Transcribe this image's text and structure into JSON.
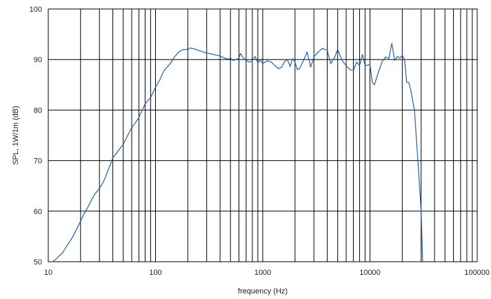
{
  "chart_data": {
    "type": "line",
    "title": "",
    "xlabel": "frequency (Hz)",
    "ylabel": "SPL, 1W/1m (dB)",
    "x_scale": "log",
    "xlim": [
      10,
      100000
    ],
    "ylim": [
      50,
      100
    ],
    "grid": true,
    "legend": "none",
    "x_ticks": [
      "10",
      "100",
      "1000",
      "10000",
      "100000"
    ],
    "y_ticks": [
      "50",
      "60",
      "70",
      "80",
      "90",
      "100"
    ],
    "series": [
      {
        "color": "#1f5fa8",
        "points": [
          [
            11,
            50
          ],
          [
            12,
            50.7
          ],
          [
            13.5,
            51.7
          ],
          [
            15,
            53.2
          ],
          [
            17,
            55
          ],
          [
            19,
            57
          ],
          [
            21,
            59
          ],
          [
            23,
            60.5
          ],
          [
            25,
            62
          ],
          [
            27,
            63.3
          ],
          [
            30,
            64.5
          ],
          [
            33,
            66
          ],
          [
            36,
            68
          ],
          [
            40,
            70.5
          ],
          [
            45,
            72
          ],
          [
            50,
            73.2
          ],
          [
            55,
            75
          ],
          [
            60,
            76.5
          ],
          [
            65,
            77.5
          ],
          [
            70,
            78.5
          ],
          [
            75,
            80
          ],
          [
            80,
            81.2
          ],
          [
            90,
            82.5
          ],
          [
            100,
            84.5
          ],
          [
            110,
            86
          ],
          [
            120,
            87.8
          ],
          [
            135,
            89
          ],
          [
            150,
            90.5
          ],
          [
            165,
            91.5
          ],
          [
            180,
            92
          ],
          [
            200,
            92
          ],
          [
            210,
            92.3
          ],
          [
            230,
            92.1
          ],
          [
            260,
            91.7
          ],
          [
            300,
            91.3
          ],
          [
            350,
            91
          ],
          [
            400,
            90.7
          ],
          [
            450,
            90.2
          ],
          [
            480,
            90.1
          ],
          [
            500,
            90.3
          ],
          [
            530,
            89.8
          ],
          [
            560,
            90
          ],
          [
            600,
            90.3
          ],
          [
            620,
            91.2
          ],
          [
            650,
            90.5
          ],
          [
            700,
            89.8
          ],
          [
            750,
            89.5
          ],
          [
            800,
            89.8
          ],
          [
            850,
            90.6
          ],
          [
            900,
            89.3
          ],
          [
            950,
            89.9
          ],
          [
            1000,
            89.2
          ],
          [
            1100,
            89.8
          ],
          [
            1200,
            89.5
          ],
          [
            1300,
            88.8
          ],
          [
            1400,
            88.2
          ],
          [
            1500,
            88.5
          ],
          [
            1600,
            89.6
          ],
          [
            1700,
            90
          ],
          [
            1800,
            88.6
          ],
          [
            1900,
            90.2
          ],
          [
            2000,
            89.5
          ],
          [
            2100,
            88
          ],
          [
            2200,
            88.2
          ],
          [
            2400,
            89.8
          ],
          [
            2600,
            91.5
          ],
          [
            2800,
            88.5
          ],
          [
            3000,
            90.5
          ],
          [
            3300,
            91.5
          ],
          [
            3600,
            92.2
          ],
          [
            4000,
            91.8
          ],
          [
            4300,
            89.2
          ],
          [
            4700,
            90.5
          ],
          [
            5000,
            92
          ],
          [
            5500,
            89.8
          ],
          [
            6000,
            88.8
          ],
          [
            6500,
            88
          ],
          [
            7000,
            87.8
          ],
          [
            7500,
            89.5
          ],
          [
            8000,
            88.8
          ],
          [
            8500,
            91
          ],
          [
            9000,
            88.8
          ],
          [
            10000,
            89
          ],
          [
            10500,
            85.5
          ],
          [
            11000,
            85
          ],
          [
            12000,
            87.5
          ],
          [
            13000,
            89.6
          ],
          [
            14000,
            90.5
          ],
          [
            15000,
            90.2
          ],
          [
            16000,
            93.2
          ],
          [
            17000,
            89.8
          ],
          [
            18000,
            90.6
          ],
          [
            19000,
            90.3
          ],
          [
            20000,
            90.8
          ],
          [
            21000,
            90
          ],
          [
            22000,
            85.5
          ],
          [
            23000,
            85.5
          ],
          [
            24000,
            84
          ],
          [
            26000,
            80
          ],
          [
            28000,
            70
          ],
          [
            30000,
            60
          ],
          [
            31000,
            50
          ]
        ]
      }
    ]
  }
}
